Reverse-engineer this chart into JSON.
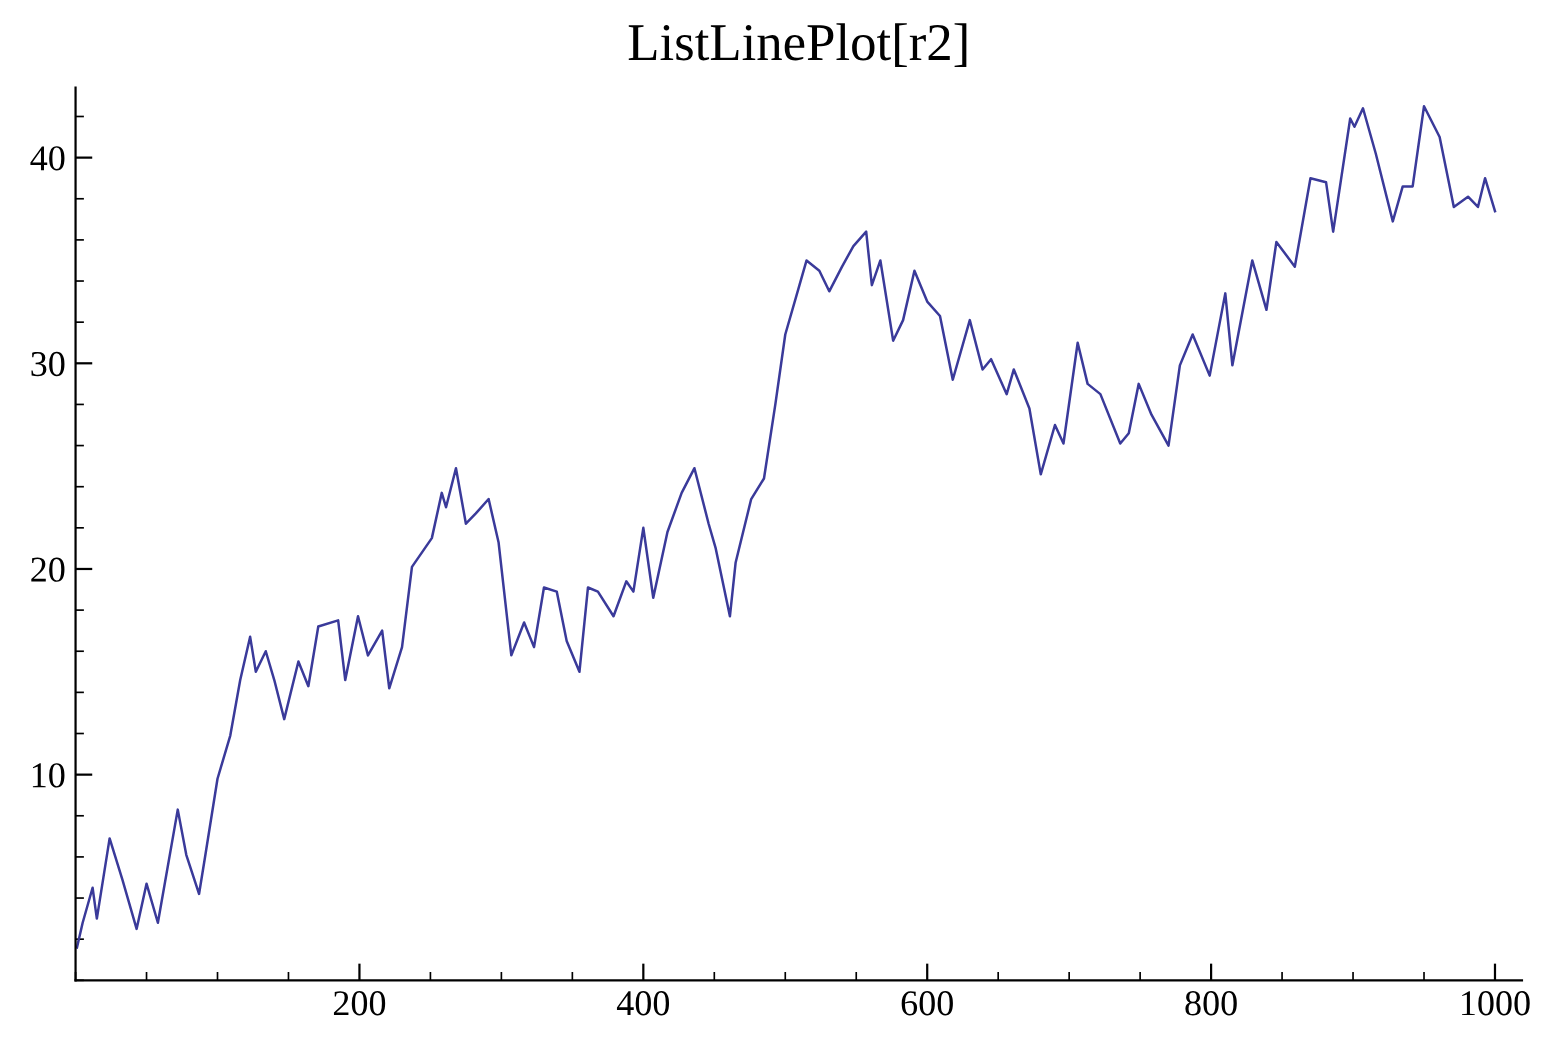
{
  "chart_data": {
    "type": "line",
    "title": "ListLinePlot[r2]",
    "x": [
      1,
      5,
      12,
      15,
      24,
      33,
      43,
      50,
      58,
      72,
      78,
      87,
      91,
      100,
      109,
      116,
      123,
      127,
      134,
      140,
      147,
      157,
      164,
      171,
      185,
      190,
      199,
      206,
      216,
      221,
      230,
      237,
      251,
      258,
      261,
      268,
      275,
      282,
      291,
      298,
      307,
      316,
      323,
      330,
      339,
      346,
      355,
      361,
      368,
      379,
      388,
      393,
      400,
      407,
      417,
      427,
      436,
      446,
      451,
      461,
      465,
      476,
      485,
      493,
      500,
      510,
      515,
      524,
      531,
      540,
      548,
      557,
      561,
      567,
      576,
      583,
      591,
      600,
      609,
      618,
      630,
      639,
      645,
      656,
      661,
      672,
      680,
      690,
      696,
      706,
      713,
      722,
      736,
      742,
      749,
      758,
      770,
      778,
      787,
      799,
      810,
      815,
      829,
      839,
      846,
      859,
      870,
      881,
      886,
      898,
      901,
      907,
      916,
      928,
      935,
      942,
      950,
      961,
      971,
      981,
      988,
      993,
      1000
    ],
    "series": [
      {
        "color": "#3a3a9a",
        "values": [
          1.6,
          2.8,
          4.5,
          3.0,
          6.9,
          4.9,
          2.5,
          4.7,
          2.8,
          8.3,
          6.1,
          4.2,
          5.9,
          9.8,
          11.9,
          14.6,
          16.7,
          15.0,
          16.0,
          14.6,
          12.7,
          15.5,
          14.3,
          17.2,
          17.5,
          14.6,
          17.7,
          15.8,
          17.0,
          14.2,
          16.2,
          20.1,
          21.5,
          23.7,
          23.0,
          24.9,
          22.2,
          22.7,
          23.4,
          21.3,
          15.8,
          17.4,
          16.2,
          19.1,
          18.9,
          16.5,
          15.0,
          19.1,
          18.9,
          17.7,
          19.4,
          18.9,
          22.0,
          18.6,
          21.8,
          23.7,
          24.9,
          22.2,
          21.0,
          17.7,
          20.3,
          23.4,
          24.4,
          28.0,
          31.4,
          33.8,
          35.0,
          34.5,
          33.5,
          34.7,
          35.7,
          36.4,
          33.8,
          35.0,
          31.1,
          32.1,
          34.5,
          33.0,
          32.3,
          29.2,
          32.1,
          29.7,
          30.2,
          28.5,
          29.7,
          27.8,
          24.6,
          27.0,
          26.1,
          31.0,
          29.0,
          28.5,
          26.1,
          26.6,
          29.0,
          27.5,
          26.0,
          29.9,
          31.4,
          29.4,
          33.4,
          29.9,
          35.0,
          32.6,
          35.9,
          34.7,
          39.0,
          38.8,
          36.4,
          41.9,
          41.5,
          42.4,
          40.2,
          36.9,
          38.6,
          38.6,
          42.5,
          41.0,
          37.6,
          38.1,
          37.6,
          39.0,
          37.4
        ]
      }
    ],
    "xlim": [
      0,
      1019
    ],
    "ylim": [
      0,
      43.4
    ],
    "xticks": [
      200,
      400,
      600,
      800,
      1000
    ],
    "yticks": [
      10,
      20,
      30,
      40
    ],
    "grid": false,
    "legend": false
  }
}
